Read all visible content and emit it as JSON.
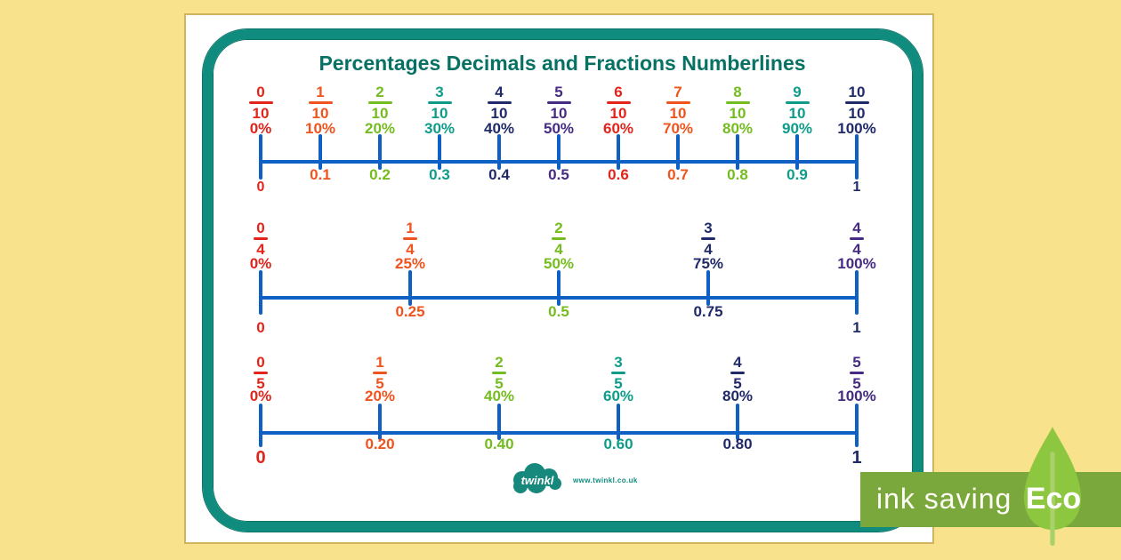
{
  "title": "Percentages Decimals and Fractions Numberlines",
  "palette": {
    "background": "#F8E28C",
    "frame_teal": "#0F8C7E",
    "line_blue": "#0E60C4",
    "title_green": "#077164",
    "red": "#E3241B",
    "orange": "#F0541E",
    "green": "#75BC20",
    "teal": "#0E9C8A",
    "navy": "#202A68",
    "purple": "#462B82",
    "banner_green": "#7BA83D",
    "leaf_green": "#8DC63F"
  },
  "numberlines": [
    {
      "name": "tenths",
      "line_color": "#0E60C4",
      "points": [
        {
          "num": "0",
          "den": "10",
          "percent": "0%",
          "color": "#E3241B",
          "end_label": "0",
          "end_color": "#E3241B"
        },
        {
          "num": "1",
          "den": "10",
          "percent": "10%",
          "decimal": "0.1",
          "color": "#F0541E"
        },
        {
          "num": "2",
          "den": "10",
          "percent": "20%",
          "decimal": "0.2",
          "color": "#75BC20"
        },
        {
          "num": "3",
          "den": "10",
          "percent": "30%",
          "decimal": "0.3",
          "color": "#0E9C8A"
        },
        {
          "num": "4",
          "den": "10",
          "percent": "40%",
          "decimal": "0.4",
          "color": "#202A68"
        },
        {
          "num": "5",
          "den": "10",
          "percent": "50%",
          "decimal": "0.5",
          "color": "#462B82"
        },
        {
          "num": "6",
          "den": "10",
          "percent": "60%",
          "decimal": "0.6",
          "color": "#E3241B"
        },
        {
          "num": "7",
          "den": "10",
          "percent": "70%",
          "decimal": "0.7",
          "color": "#F0541E"
        },
        {
          "num": "8",
          "den": "10",
          "percent": "80%",
          "decimal": "0.8",
          "color": "#75BC20"
        },
        {
          "num": "9",
          "den": "10",
          "percent": "90%",
          "decimal": "0.9",
          "color": "#0E9C8A"
        },
        {
          "num": "10",
          "den": "10",
          "percent": "100%",
          "color": "#202A68",
          "end_label": "1",
          "end_color": "#202A68"
        }
      ]
    },
    {
      "name": "quarters",
      "line_color": "#0E60C4",
      "points": [
        {
          "num": "0",
          "den": "4",
          "percent": "0%",
          "color": "#E3241B",
          "end_label": "0",
          "end_color": "#E3241B"
        },
        {
          "num": "1",
          "den": "4",
          "percent": "25%",
          "decimal": "0.25",
          "color": "#F0541E"
        },
        {
          "num": "2",
          "den": "4",
          "percent": "50%",
          "decimal": "0.5",
          "color": "#75BC20"
        },
        {
          "num": "3",
          "den": "4",
          "percent": "75%",
          "decimal": "0.75",
          "color": "#202A68"
        },
        {
          "num": "4",
          "den": "4",
          "percent": "100%",
          "color": "#462B82",
          "end_label": "1",
          "end_color": "#202A68"
        }
      ]
    },
    {
      "name": "fifths",
      "line_color": "#0E60C4",
      "points": [
        {
          "num": "0",
          "den": "5",
          "percent": "0%",
          "color": "#E3241B",
          "end_label": "0",
          "end_color": "#E3241B"
        },
        {
          "num": "1",
          "den": "5",
          "percent": "20%",
          "decimal": "0.20",
          "color": "#F0541E"
        },
        {
          "num": "2",
          "den": "5",
          "percent": "40%",
          "decimal": "0.40",
          "color": "#75BC20"
        },
        {
          "num": "3",
          "den": "5",
          "percent": "60%",
          "decimal": "0.60",
          "color": "#0E9C8A"
        },
        {
          "num": "4",
          "den": "5",
          "percent": "80%",
          "decimal": "0.80",
          "color": "#202A68"
        },
        {
          "num": "5",
          "den": "5",
          "percent": "100%",
          "color": "#462B82",
          "end_label": "1",
          "end_color": "#202A68"
        }
      ]
    }
  ],
  "logo": {
    "text": "twinkl",
    "url": "www.twinkl.co.uk"
  },
  "eco_badge": {
    "label": "ink saving",
    "eco": "Eco"
  }
}
